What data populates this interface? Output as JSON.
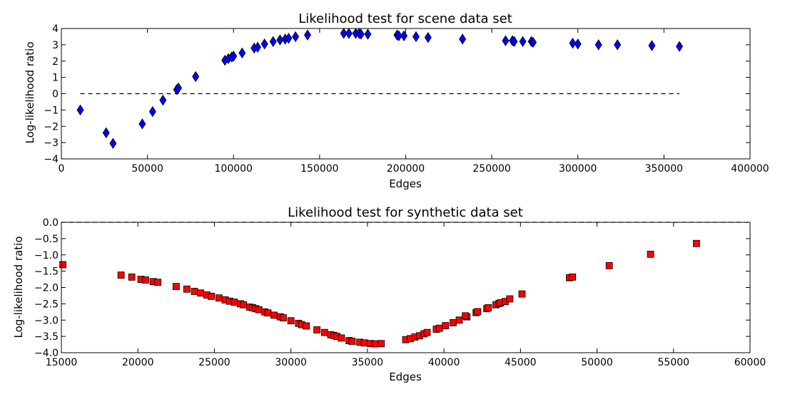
{
  "chart_data": [
    {
      "type": "scatter",
      "title": "Likelihood test for scene data set",
      "xlabel": "Edges",
      "ylabel": "Log-likelihood ratio",
      "xlim": [
        0,
        400000
      ],
      "ylim": [
        -4,
        4
      ],
      "xticks": [
        "0",
        "50000",
        "100000",
        "150000",
        "200000",
        "250000",
        "300000",
        "350000",
        "400000"
      ],
      "yticks": [
        "4",
        "3",
        "2",
        "1",
        "0",
        "−1",
        "−2",
        "−3",
        "−4"
      ],
      "marker": "diamond",
      "marker_color": "#0000ff",
      "reference_line": {
        "y": 0,
        "x_from": 11000,
        "x_to": 359000,
        "style": "dashed"
      },
      "points": [
        {
          "x": 11000,
          "y": -1.0
        },
        {
          "x": 26000,
          "y": -2.4
        },
        {
          "x": 30000,
          "y": -3.05
        },
        {
          "x": 47000,
          "y": -1.85
        },
        {
          "x": 53000,
          "y": -1.1
        },
        {
          "x": 59000,
          "y": -0.4
        },
        {
          "x": 67000,
          "y": 0.25
        },
        {
          "x": 68000,
          "y": 0.35
        },
        {
          "x": 78000,
          "y": 1.05
        },
        {
          "x": 95000,
          "y": 2.05
        },
        {
          "x": 97000,
          "y": 2.15
        },
        {
          "x": 99000,
          "y": 2.25
        },
        {
          "x": 100000,
          "y": 2.3
        },
        {
          "x": 105000,
          "y": 2.5
        },
        {
          "x": 112000,
          "y": 2.8
        },
        {
          "x": 114000,
          "y": 2.85
        },
        {
          "x": 118000,
          "y": 3.05
        },
        {
          "x": 123000,
          "y": 3.2
        },
        {
          "x": 127000,
          "y": 3.3
        },
        {
          "x": 130000,
          "y": 3.35
        },
        {
          "x": 132000,
          "y": 3.4
        },
        {
          "x": 136000,
          "y": 3.5
        },
        {
          "x": 143000,
          "y": 3.6
        },
        {
          "x": 164000,
          "y": 3.7
        },
        {
          "x": 167000,
          "y": 3.7
        },
        {
          "x": 171000,
          "y": 3.7
        },
        {
          "x": 173000,
          "y": 3.7
        },
        {
          "x": 174000,
          "y": 3.65
        },
        {
          "x": 178000,
          "y": 3.65
        },
        {
          "x": 195000,
          "y": 3.6
        },
        {
          "x": 196000,
          "y": 3.55
        },
        {
          "x": 199000,
          "y": 3.55
        },
        {
          "x": 206000,
          "y": 3.5
        },
        {
          "x": 213000,
          "y": 3.45
        },
        {
          "x": 233000,
          "y": 3.35
        },
        {
          "x": 258000,
          "y": 3.25
        },
        {
          "x": 262000,
          "y": 3.25
        },
        {
          "x": 263000,
          "y": 3.2
        },
        {
          "x": 268000,
          "y": 3.2
        },
        {
          "x": 273000,
          "y": 3.2
        },
        {
          "x": 274000,
          "y": 3.15
        },
        {
          "x": 297000,
          "y": 3.1
        },
        {
          "x": 300000,
          "y": 3.05
        },
        {
          "x": 312000,
          "y": 3.0
        },
        {
          "x": 323000,
          "y": 3.0
        },
        {
          "x": 343000,
          "y": 2.95
        },
        {
          "x": 359000,
          "y": 2.9
        }
      ]
    },
    {
      "type": "scatter",
      "title": "Likelihood test for synthetic data set",
      "xlabel": "Edges",
      "ylabel": "Log-likelihood ratio",
      "xlim": [
        15000,
        60000
      ],
      "ylim": [
        -4.0,
        0.0
      ],
      "xticks": [
        "15000",
        "20000",
        "25000",
        "30000",
        "35000",
        "40000",
        "45000",
        "50000",
        "55000",
        "60000"
      ],
      "yticks": [
        "0.0",
        "−0.5",
        "−1.0",
        "−1.5",
        "−2.0",
        "−2.5",
        "−3.0",
        "−3.5",
        "−4.0"
      ],
      "marker": "square",
      "marker_color": "#ff0000",
      "reference_line": {
        "y": 0,
        "x_from": 15000,
        "x_to": 60000,
        "style": "dashed"
      },
      "points": [
        {
          "x": 15100,
          "y": -1.3
        },
        {
          "x": 18900,
          "y": -1.62
        },
        {
          "x": 19600,
          "y": -1.68
        },
        {
          "x": 20200,
          "y": -1.75
        },
        {
          "x": 20500,
          "y": -1.77
        },
        {
          "x": 21000,
          "y": -1.82
        },
        {
          "x": 21300,
          "y": -1.84
        },
        {
          "x": 22500,
          "y": -1.97
        },
        {
          "x": 23200,
          "y": -2.05
        },
        {
          "x": 23700,
          "y": -2.12
        },
        {
          "x": 24100,
          "y": -2.17
        },
        {
          "x": 24500,
          "y": -2.23
        },
        {
          "x": 24800,
          "y": -2.27
        },
        {
          "x": 25300,
          "y": -2.32
        },
        {
          "x": 25700,
          "y": -2.38
        },
        {
          "x": 26000,
          "y": -2.42
        },
        {
          "x": 26300,
          "y": -2.45
        },
        {
          "x": 26700,
          "y": -2.5
        },
        {
          "x": 26900,
          "y": -2.53
        },
        {
          "x": 27300,
          "y": -2.6
        },
        {
          "x": 27500,
          "y": -2.62
        },
        {
          "x": 27700,
          "y": -2.65
        },
        {
          "x": 27900,
          "y": -2.68
        },
        {
          "x": 28300,
          "y": -2.75
        },
        {
          "x": 28500,
          "y": -2.78
        },
        {
          "x": 28900,
          "y": -2.85
        },
        {
          "x": 29300,
          "y": -2.9
        },
        {
          "x": 29500,
          "y": -2.93
        },
        {
          "x": 30000,
          "y": -3.02
        },
        {
          "x": 30500,
          "y": -3.1
        },
        {
          "x": 30700,
          "y": -3.14
        },
        {
          "x": 31000,
          "y": -3.18
        },
        {
          "x": 31700,
          "y": -3.3
        },
        {
          "x": 32200,
          "y": -3.38
        },
        {
          "x": 32600,
          "y": -3.45
        },
        {
          "x": 32800,
          "y": -3.47
        },
        {
          "x": 33000,
          "y": -3.5
        },
        {
          "x": 33300,
          "y": -3.55
        },
        {
          "x": 33800,
          "y": -3.63
        },
        {
          "x": 34000,
          "y": -3.65
        },
        {
          "x": 34500,
          "y": -3.68
        },
        {
          "x": 34800,
          "y": -3.7
        },
        {
          "x": 35200,
          "y": -3.72
        },
        {
          "x": 35500,
          "y": -3.73
        },
        {
          "x": 35900,
          "y": -3.72
        },
        {
          "x": 37500,
          "y": -3.6
        },
        {
          "x": 37800,
          "y": -3.57
        },
        {
          "x": 38100,
          "y": -3.52
        },
        {
          "x": 38400,
          "y": -3.48
        },
        {
          "x": 38700,
          "y": -3.42
        },
        {
          "x": 38900,
          "y": -3.38
        },
        {
          "x": 39500,
          "y": -3.28
        },
        {
          "x": 39700,
          "y": -3.25
        },
        {
          "x": 40100,
          "y": -3.17
        },
        {
          "x": 40600,
          "y": -3.08
        },
        {
          "x": 41000,
          "y": -3.0
        },
        {
          "x": 41500,
          "y": -2.9
        },
        {
          "x": 41400,
          "y": -2.87
        },
        {
          "x": 42100,
          "y": -2.77
        },
        {
          "x": 42200,
          "y": -2.74
        },
        {
          "x": 42800,
          "y": -2.65
        },
        {
          "x": 42900,
          "y": -2.62
        },
        {
          "x": 43400,
          "y": -2.53
        },
        {
          "x": 43600,
          "y": -2.49
        },
        {
          "x": 43700,
          "y": -2.47
        },
        {
          "x": 44000,
          "y": -2.43
        },
        {
          "x": 44300,
          "y": -2.35
        },
        {
          "x": 45100,
          "y": -2.2
        },
        {
          "x": 48200,
          "y": -1.7
        },
        {
          "x": 48400,
          "y": -1.68
        },
        {
          "x": 50800,
          "y": -1.33
        },
        {
          "x": 53500,
          "y": -0.98
        },
        {
          "x": 56500,
          "y": -0.65
        }
      ]
    }
  ]
}
